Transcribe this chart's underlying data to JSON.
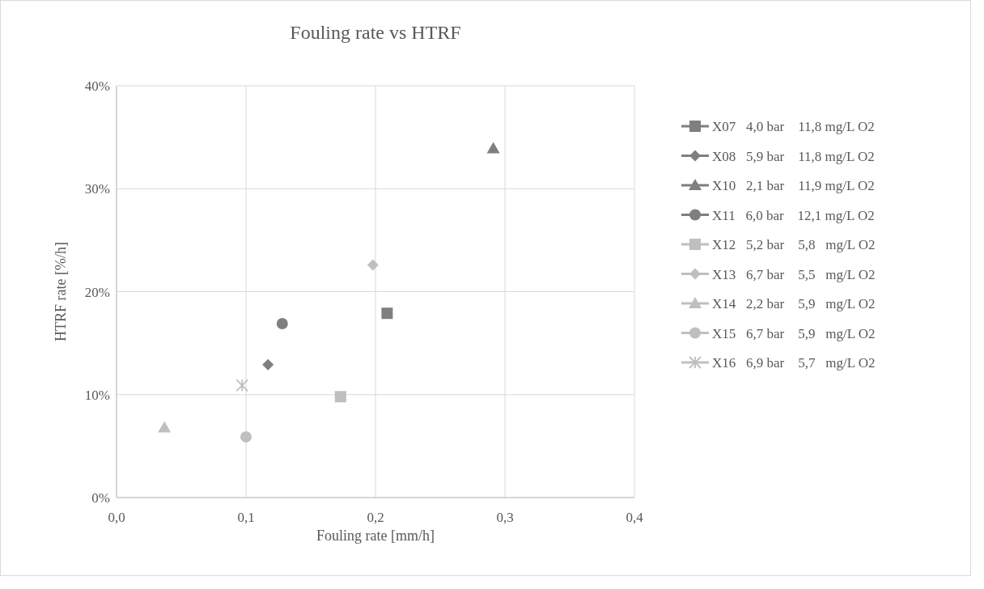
{
  "chart_data": {
    "type": "scatter",
    "title": "Fouling rate vs HTRF",
    "xlabel": "Fouling rate [mm/h]",
    "ylabel": "HTRF rate [%/h]",
    "xlim": [
      0,
      0.4
    ],
    "xticks": [
      {
        "value": 0,
        "label": "0,0"
      },
      {
        "value": 0.1,
        "label": "0,1"
      },
      {
        "value": 0.2,
        "label": "0,2"
      },
      {
        "value": 0.3,
        "label": "0,3"
      },
      {
        "value": 0.4,
        "label": "0,4"
      }
    ],
    "ylim": [
      0,
      40
    ],
    "yticks": [
      {
        "value": 0,
        "label": "0%"
      },
      {
        "value": 10,
        "label": "10%"
      },
      {
        "value": 20,
        "label": "20%"
      },
      {
        "value": 30,
        "label": "30%"
      },
      {
        "value": 40,
        "label": "40%"
      }
    ],
    "grid": true,
    "legend": "right",
    "series": [
      {
        "name": "X07   4,0 bar    11,8 mg/L O2",
        "color": "#7f7f7f",
        "marker": "square",
        "x": [
          0.209
        ],
        "values": [
          17.9
        ]
      },
      {
        "name": "X08   5,9 bar    11,8 mg/L O2",
        "color": "#7f7f7f",
        "marker": "diamond",
        "x": [
          0.117
        ],
        "values": [
          12.9
        ]
      },
      {
        "name": "X10   2,1 bar    11,9 mg/L O2",
        "color": "#7f7f7f",
        "marker": "triangle",
        "x": [
          0.291
        ],
        "values": [
          33.9
        ]
      },
      {
        "name": "X11   6,0 bar    12,1 mg/L O2",
        "color": "#7f7f7f",
        "marker": "circle",
        "x": [
          0.128
        ],
        "values": [
          16.9
        ]
      },
      {
        "name": "X12   5,2 bar    5,8   mg/L O2",
        "color": "#bfbfbf",
        "marker": "square",
        "x": [
          0.173
        ],
        "values": [
          9.8
        ]
      },
      {
        "name": "X13   6,7 bar    5,5   mg/L O2",
        "color": "#bfbfbf",
        "marker": "diamond",
        "x": [
          0.198
        ],
        "values": [
          22.6
        ]
      },
      {
        "name": "X14   2,2 bar    5,9   mg/L O2",
        "color": "#bfbfbf",
        "marker": "triangle",
        "x": [
          0.037
        ],
        "values": [
          6.8
        ]
      },
      {
        "name": "X15   6,7 bar    5,9   mg/L O2",
        "color": "#bfbfbf",
        "marker": "circle",
        "x": [
          0.1
        ],
        "values": [
          5.9
        ]
      },
      {
        "name": "X16   6,9 bar    5,7   mg/L O2",
        "color": "#bfbfbf",
        "marker": "cross",
        "x": [
          0.097
        ],
        "values": [
          10.9
        ]
      }
    ]
  }
}
